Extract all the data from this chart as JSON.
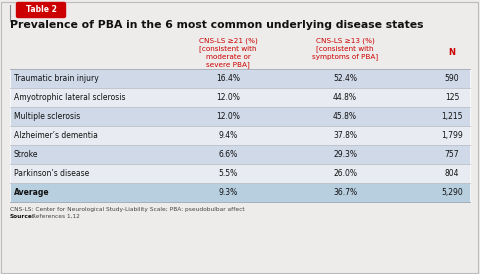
{
  "table_label": "Table 2",
  "title": "Prevalence of PBA in the 6 most common underlying disease states",
  "col_headers": [
    "",
    "CNS-LS ≥21 (%)\n[consistent with\nmoderate or\nsevere PBA]",
    "CNS-LS ≥13 (%)\n[consistent with\nsymptoms of PBA]",
    "N"
  ],
  "rows": [
    [
      "Traumatic brain injury",
      "16.4%",
      "52.4%",
      "590"
    ],
    [
      "Amyotrophic lateral sclerosis",
      "12.0%",
      "44.8%",
      "125"
    ],
    [
      "Multiple sclerosis",
      "12.0%",
      "45.8%",
      "1,215"
    ],
    [
      "Alzheimer’s dementia",
      "9.4%",
      "37.8%",
      "1,799"
    ],
    [
      "Stroke",
      "6.6%",
      "29.3%",
      "757"
    ],
    [
      "Parkinson’s disease",
      "5.5%",
      "26.0%",
      "804"
    ],
    [
      "Average",
      "9.3%",
      "36.7%",
      "5,290"
    ]
  ],
  "footer1": "CNS-LS: Center for Neurological Study-Liability Scale; PBA: pseudobulbar affect",
  "footer2_bold": "Source:",
  "footer2_rest": " References 1,12",
  "header_color": "#cc0000",
  "table_bg_blue": "#cfd9e8",
  "row_white_bg": "#e8ecf2",
  "avg_row_bg": "#b8cfe0",
  "border_color": "#ffffff",
  "table_label_bg": "#cc0000",
  "table_label_text": "#ffffff",
  "title_color": "#111111",
  "bg_color": "#edecea"
}
